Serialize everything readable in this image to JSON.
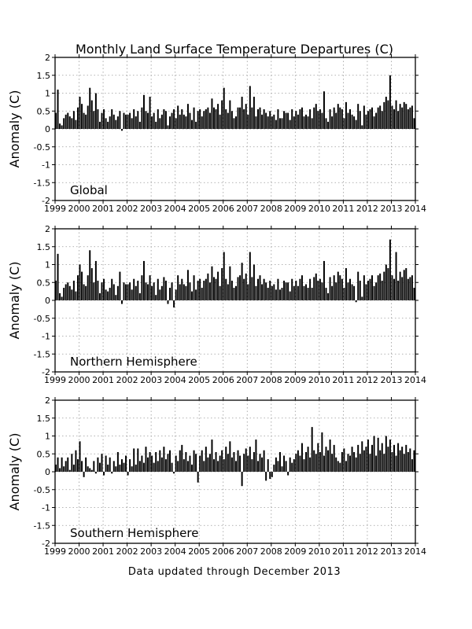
{
  "chart_data": {
    "type": "bar",
    "title": "Monthly Land Surface Temperature Departures (C)",
    "footer": "Data updated through December 2013",
    "ylabel": "Anomaly (C)",
    "ylim": [
      -2,
      2
    ],
    "yticks": [
      2,
      1.5,
      1,
      0.5,
      0,
      -0.5,
      -1,
      -1.5,
      -2
    ],
    "xlim": [
      1999,
      2014
    ],
    "xticks": [
      1999,
      2000,
      2001,
      2002,
      2003,
      2004,
      2005,
      2006,
      2007,
      2008,
      2009,
      2010,
      2011,
      2012,
      2013,
      2014
    ],
    "x_start": "1999-01",
    "x_end": "2013-12",
    "grid": true,
    "panels": [
      {
        "label": "Global",
        "values": [
          0.45,
          1.1,
          0.15,
          0.1,
          0.3,
          0.4,
          0.45,
          0.35,
          0.3,
          0.5,
          0.25,
          0.6,
          0.9,
          0.7,
          0.45,
          0.4,
          0.65,
          1.15,
          0.8,
          0.5,
          1.0,
          0.55,
          0.2,
          0.45,
          0.55,
          0.3,
          0.2,
          0.35,
          0.55,
          0.4,
          0.25,
          0.35,
          0.5,
          -0.05,
          0.45,
          0.4,
          0.4,
          0.45,
          0.3,
          0.55,
          0.35,
          0.5,
          0.2,
          0.6,
          0.95,
          0.5,
          0.45,
          0.9,
          0.35,
          0.45,
          0.2,
          0.55,
          0.3,
          0.4,
          0.55,
          0.5,
          0.1,
          0.35,
          0.45,
          0.55,
          0.3,
          0.65,
          0.4,
          0.55,
          0.4,
          0.35,
          0.7,
          0.45,
          0.25,
          0.6,
          0.2,
          0.5,
          0.55,
          0.35,
          0.5,
          0.55,
          0.6,
          0.45,
          0.85,
          0.6,
          0.55,
          0.7,
          0.4,
          0.8,
          1.15,
          0.55,
          0.45,
          0.8,
          0.5,
          0.3,
          0.35,
          0.6,
          0.6,
          0.9,
          0.55,
          0.7,
          0.4,
          1.2,
          0.6,
          0.9,
          0.35,
          0.55,
          0.6,
          0.4,
          0.55,
          0.45,
          0.35,
          0.5,
          0.35,
          0.4,
          0.25,
          0.55,
          0.3,
          0.3,
          0.5,
          0.45,
          0.45,
          0.25,
          0.55,
          0.35,
          0.5,
          0.4,
          0.55,
          0.6,
          0.35,
          0.4,
          0.35,
          0.55,
          0.3,
          0.6,
          0.7,
          0.5,
          0.55,
          0.45,
          1.05,
          0.3,
          0.2,
          0.55,
          0.35,
          0.6,
          0.45,
          0.7,
          0.6,
          0.55,
          0.3,
          0.75,
          0.45,
          0.55,
          0.4,
          0.35,
          0.25,
          0.7,
          0.5,
          0.1,
          0.65,
          0.4,
          0.5,
          0.55,
          0.6,
          0.35,
          0.45,
          0.6,
          0.65,
          0.5,
          0.75,
          0.9,
          0.8,
          1.5,
          0.65,
          0.55,
          0.8,
          0.5,
          0.7,
          0.6,
          0.75,
          0.7,
          0.55,
          0.6,
          0.65,
          0.3
        ]
      },
      {
        "label": "Northern Hemisphere",
        "values": [
          0.55,
          1.3,
          0.2,
          0.1,
          0.35,
          0.45,
          0.5,
          0.4,
          0.3,
          0.55,
          0.25,
          0.7,
          1.0,
          0.8,
          0.45,
          0.4,
          0.7,
          1.4,
          0.9,
          0.5,
          1.1,
          0.55,
          0.2,
          0.5,
          0.6,
          0.3,
          0.25,
          0.35,
          0.6,
          0.45,
          0.15,
          0.4,
          0.8,
          -0.1,
          0.5,
          0.45,
          0.45,
          0.5,
          0.3,
          0.6,
          0.4,
          0.55,
          0.2,
          0.7,
          1.1,
          0.5,
          0.45,
          0.7,
          0.4,
          0.5,
          0.15,
          0.6,
          0.3,
          0.4,
          0.65,
          0.55,
          -0.1,
          0.35,
          0.5,
          -0.2,
          0.3,
          0.7,
          0.45,
          0.6,
          0.45,
          0.4,
          0.85,
          0.5,
          0.25,
          0.7,
          0.3,
          0.55,
          0.6,
          0.35,
          0.55,
          0.6,
          0.75,
          0.5,
          0.95,
          0.65,
          0.6,
          0.8,
          0.4,
          0.9,
          1.35,
          0.6,
          0.45,
          0.95,
          0.55,
          0.35,
          0.4,
          0.65,
          0.7,
          1.05,
          0.6,
          0.75,
          0.45,
          1.35,
          0.65,
          1.0,
          0.4,
          0.6,
          0.7,
          0.45,
          0.6,
          0.5,
          0.35,
          0.55,
          0.4,
          0.45,
          0.3,
          0.6,
          0.3,
          0.35,
          0.55,
          0.5,
          0.5,
          0.25,
          0.6,
          0.4,
          0.55,
          0.4,
          0.6,
          0.7,
          0.4,
          0.45,
          0.35,
          0.6,
          0.35,
          0.65,
          0.75,
          0.55,
          0.6,
          0.5,
          1.1,
          0.35,
          0.2,
          0.65,
          0.4,
          0.7,
          0.5,
          0.8,
          0.7,
          0.6,
          0.35,
          0.9,
          0.5,
          0.6,
          0.45,
          0.4,
          -0.05,
          0.8,
          0.55,
          0.1,
          0.7,
          0.45,
          0.55,
          0.6,
          0.7,
          0.4,
          0.5,
          0.7,
          0.75,
          0.55,
          0.8,
          1.0,
          0.9,
          1.7,
          0.7,
          0.6,
          1.35,
          0.55,
          0.8,
          0.65,
          0.85,
          0.9,
          0.6,
          0.65,
          0.7,
          0.35
        ]
      },
      {
        "label": "Southern Hemisphere",
        "values": [
          0.2,
          0.4,
          0.1,
          0.4,
          0.15,
          0.3,
          0.4,
          0.05,
          0.5,
          0.2,
          0.6,
          0.35,
          0.85,
          0.3,
          -0.15,
          0.4,
          0.15,
          0.1,
          0.05,
          0.3,
          -0.05,
          0.4,
          0.25,
          0.5,
          -0.1,
          0.45,
          0.2,
          0.4,
          -0.05,
          0.3,
          0.15,
          0.55,
          0.2,
          0.35,
          0.25,
          0.45,
          -0.1,
          0.35,
          0.15,
          0.65,
          0.2,
          0.65,
          0.3,
          0.45,
          0.25,
          0.7,
          0.4,
          0.55,
          0.45,
          0.25,
          0.55,
          0.3,
          0.6,
          0.4,
          0.7,
          0.35,
          0.5,
          0.6,
          0.25,
          -0.05,
          0.45,
          0.3,
          0.6,
          0.75,
          0.35,
          0.55,
          0.3,
          0.45,
          0.2,
          0.6,
          0.5,
          -0.3,
          0.45,
          0.6,
          0.3,
          0.7,
          0.4,
          0.5,
          0.9,
          0.35,
          0.55,
          0.3,
          0.45,
          0.6,
          0.35,
          0.7,
          0.5,
          0.85,
          0.4,
          0.55,
          0.3,
          0.6,
          0.45,
          -0.4,
          0.5,
          0.65,
          0.45,
          0.7,
          0.35,
          0.55,
          0.9,
          0.3,
          0.5,
          0.4,
          0.6,
          -0.25,
          0.35,
          -0.2,
          -0.15,
          0.2,
          0.4,
          0.3,
          0.55,
          0.15,
          0.45,
          0.3,
          -0.1,
          0.4,
          0.25,
          0.35,
          0.5,
          0.6,
          0.45,
          0.8,
          0.35,
          0.55,
          0.7,
          0.4,
          1.25,
          0.6,
          0.5,
          0.8,
          0.55,
          1.1,
          0.45,
          0.7,
          0.6,
          0.9,
          0.5,
          0.75,
          0.4,
          0.3,
          0.25,
          0.55,
          0.65,
          0.3,
          0.5,
          0.45,
          0.7,
          0.55,
          0.4,
          0.75,
          0.5,
          0.85,
          0.6,
          0.7,
          0.9,
          0.5,
          0.75,
          1.0,
          0.45,
          0.95,
          0.6,
          0.8,
          0.5,
          1.0,
          0.7,
          0.9,
          0.55,
          0.75,
          0.45,
          0.8,
          0.6,
          0.7,
          0.5,
          0.75,
          0.55,
          0.65,
          0.35,
          0.6
        ]
      }
    ]
  }
}
